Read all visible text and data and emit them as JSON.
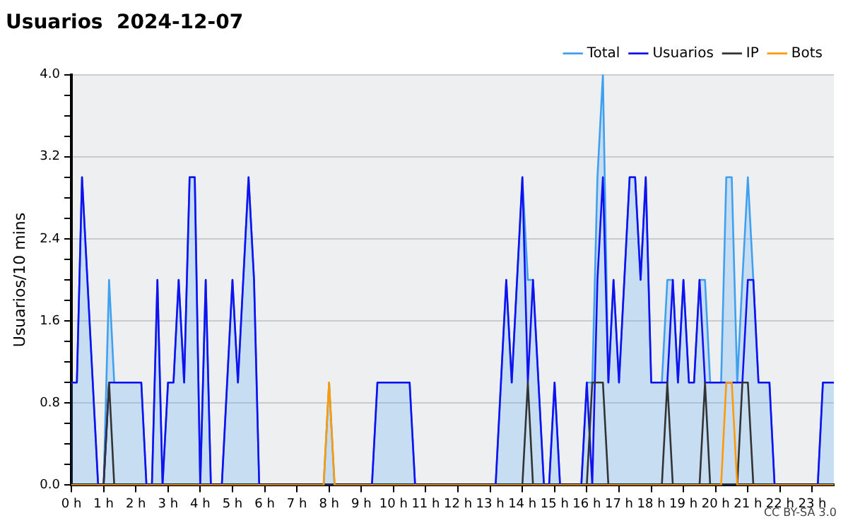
{
  "chart_data": {
    "type": "line",
    "title": "Usuarios  2024-12-07",
    "ylabel": "Usuarios/10 mins",
    "annotations": [
      "CC BY-SA 3.0"
    ],
    "xlim": [
      0,
      23.67
    ],
    "xticks": [
      {
        "value": 0,
        "label": "0 h"
      },
      {
        "value": 1,
        "label": "1 h"
      },
      {
        "value": 2,
        "label": "2 h"
      },
      {
        "value": 3,
        "label": "3 h"
      },
      {
        "value": 4,
        "label": "4 h"
      },
      {
        "value": 5,
        "label": "5 h"
      },
      {
        "value": 6,
        "label": "6 h"
      },
      {
        "value": 7,
        "label": "7 h"
      },
      {
        "value": 8,
        "label": "8 h"
      },
      {
        "value": 9,
        "label": "9 h"
      },
      {
        "value": 10,
        "label": "10 h"
      },
      {
        "value": 11,
        "label": "11 h"
      },
      {
        "value": 12,
        "label": "12 h"
      },
      {
        "value": 13,
        "label": "13 h"
      },
      {
        "value": 14,
        "label": "14 h"
      },
      {
        "value": 15,
        "label": "15 h"
      },
      {
        "value": 16,
        "label": "16 h"
      },
      {
        "value": 17,
        "label": "17 h"
      },
      {
        "value": 18,
        "label": "18 h"
      },
      {
        "value": 19,
        "label": "19 h"
      },
      {
        "value": 20,
        "label": "20 h"
      },
      {
        "value": 21,
        "label": "21 h"
      },
      {
        "value": 22,
        "label": "22 h"
      },
      {
        "value": 23,
        "label": "23 h"
      }
    ],
    "ylim": [
      0,
      4
    ],
    "yticks": [
      {
        "value": 0,
        "label": "0.0"
      },
      {
        "value": 0.2,
        "label": null
      },
      {
        "value": 0.4,
        "label": null
      },
      {
        "value": 0.6,
        "label": null
      },
      {
        "value": 0.8,
        "label": "0.8"
      },
      {
        "value": 1,
        "label": null
      },
      {
        "value": 1.2,
        "label": null
      },
      {
        "value": 1.4,
        "label": null
      },
      {
        "value": 1.6,
        "label": "1.6"
      },
      {
        "value": 1.8,
        "label": null
      },
      {
        "value": 2,
        "label": null
      },
      {
        "value": 2.2,
        "label": null
      },
      {
        "value": 2.4,
        "label": "2.4"
      },
      {
        "value": 2.6,
        "label": null
      },
      {
        "value": 2.8,
        "label": null
      },
      {
        "value": 3,
        "label": null
      },
      {
        "value": 3.2,
        "label": "3.2"
      },
      {
        "value": 3.4,
        "label": null
      },
      {
        "value": 3.6,
        "label": null
      },
      {
        "value": 3.8,
        "label": null
      },
      {
        "value": 4,
        "label": "4.0"
      }
    ],
    "grid": "y",
    "legend": "top right",
    "marker": "none",
    "line_style": "solid",
    "series": [
      {
        "name": "Total",
        "type": "area",
        "color": "#3fa0f0",
        "x": [
          0,
          0.17,
          0.33,
          0.83,
          1,
          1.17,
          1.33,
          2.17,
          2.33,
          2.5,
          2.67,
          2.83,
          3,
          3.17,
          3.33,
          3.5,
          3.67,
          3.83,
          4,
          4.17,
          4.33,
          4.67,
          5,
          5.17,
          5.5,
          5.67,
          5.83,
          7.83,
          8,
          8.17,
          9.33,
          9.5,
          10.5,
          10.67,
          13.17,
          13.5,
          13.67,
          14,
          14.17,
          14.33,
          14.5,
          14.67,
          14.83,
          15,
          15.17,
          15.83,
          16,
          16.17,
          16.33,
          16.5,
          16.67,
          16.83,
          17,
          17.33,
          17.5,
          17.67,
          17.83,
          18,
          18.33,
          18.5,
          18.67,
          18.83,
          19,
          19.17,
          19.33,
          19.5,
          19.67,
          19.83,
          20.17,
          20.33,
          20.5,
          20.67,
          20.83,
          21,
          21.17,
          21.33,
          21.67,
          21.83,
          23.17,
          23.33,
          23.67
        ],
        "values": [
          1,
          1,
          3,
          0,
          0,
          2,
          1,
          1,
          0,
          0,
          2,
          0,
          1,
          1,
          2,
          1,
          3,
          3,
          0,
          2,
          0,
          0,
          2,
          1,
          3,
          2,
          0,
          0,
          1,
          0,
          0,
          1,
          1,
          0,
          0,
          2,
          1,
          3,
          2,
          2,
          1,
          0,
          0,
          1,
          0,
          0,
          1,
          1,
          3,
          4,
          1,
          2,
          1,
          3,
          3,
          2,
          3,
          1,
          1,
          2,
          2,
          1,
          2,
          1,
          1,
          2,
          2,
          1,
          1,
          3,
          3,
          1,
          2,
          3,
          2,
          1,
          1,
          0,
          0,
          1,
          1
        ]
      },
      {
        "name": "Usuarios",
        "color": "#1010f0",
        "x": [
          0,
          0.17,
          0.33,
          0.83,
          1,
          1.17,
          2.17,
          2.33,
          2.5,
          2.67,
          2.83,
          3,
          3.17,
          3.33,
          3.5,
          3.67,
          3.83,
          4,
          4.17,
          4.33,
          4.67,
          5,
          5.17,
          5.5,
          5.67,
          5.83,
          9.33,
          9.5,
          10.5,
          10.67,
          13.17,
          13.5,
          13.67,
          14,
          14.17,
          14.33,
          14.67,
          14.83,
          15,
          15.17,
          15.83,
          16,
          16.17,
          16.33,
          16.5,
          16.67,
          16.83,
          17,
          17.33,
          17.5,
          17.67,
          17.83,
          18,
          18.5,
          18.67,
          18.83,
          19,
          19.17,
          19.33,
          19.5,
          19.67,
          20.83,
          21,
          21.17,
          21.33,
          21.67,
          21.83,
          23.17,
          23.33,
          23.67
        ],
        "values": [
          1,
          1,
          3,
          0,
          0,
          1,
          1,
          0,
          0,
          2,
          0,
          1,
          1,
          2,
          1,
          3,
          3,
          0,
          2,
          0,
          0,
          2,
          1,
          3,
          2,
          0,
          0,
          1,
          1,
          0,
          0,
          2,
          1,
          3,
          1,
          2,
          0,
          0,
          1,
          0,
          0,
          1,
          0,
          2,
          3,
          1,
          2,
          1,
          3,
          3,
          2,
          3,
          1,
          1,
          2,
          1,
          2,
          1,
          1,
          2,
          1,
          1,
          2,
          2,
          1,
          1,
          0,
          0,
          1,
          1
        ]
      },
      {
        "name": "IP",
        "color": "#333333",
        "x": [
          0,
          1,
          1.17,
          1.33,
          14,
          14.17,
          14.33,
          16,
          16.17,
          16.5,
          16.67,
          18.33,
          18.5,
          18.67,
          19.5,
          19.67,
          19.83,
          20.67,
          20.83,
          21,
          21.17,
          23.67
        ],
        "values": [
          0,
          0,
          1,
          0,
          0,
          1,
          0,
          0,
          1,
          1,
          0,
          0,
          1,
          0,
          0,
          1,
          0,
          0,
          1,
          1,
          0,
          0
        ]
      },
      {
        "name": "Bots",
        "color": "#ff9a00",
        "x": [
          0,
          7.83,
          8,
          8.17,
          20.17,
          20.33,
          20.5,
          20.67,
          23.67
        ],
        "values": [
          0,
          0,
          1,
          0,
          0,
          1,
          1,
          0,
          0
        ]
      }
    ]
  }
}
